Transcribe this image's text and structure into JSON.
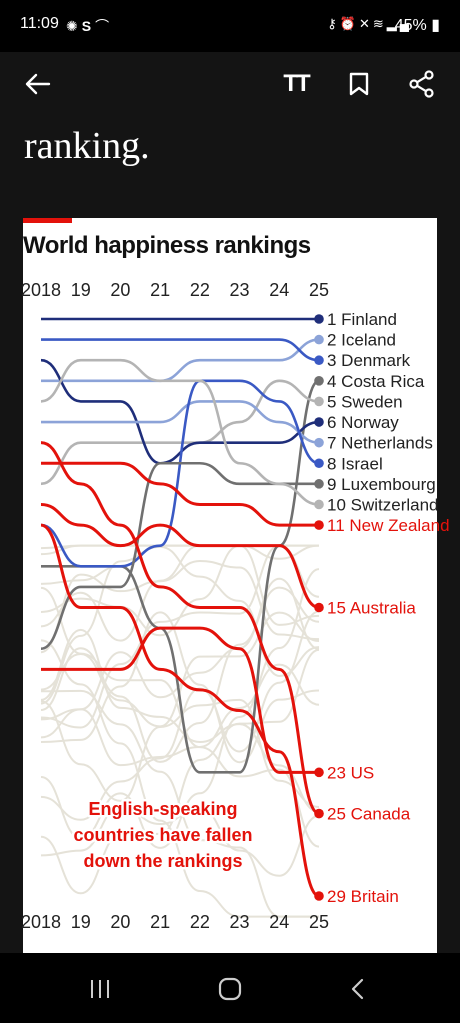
{
  "status_bar": {
    "time": "11:09",
    "left_icons": [
      "settings-icon",
      "s-app-icon",
      "wifi-calling-icon"
    ],
    "right_icons": [
      "key-icon",
      "alarm-icon",
      "mute-icon",
      "wifi-icon",
      "signal-icon"
    ],
    "battery": "45%"
  },
  "toolbar": {
    "back_icon": "arrow-left-icon",
    "text_size_label": "TT",
    "bookmark_icon": "bookmark-icon",
    "share_icon": "share-icon"
  },
  "article": {
    "headline_fragment": "ranking."
  },
  "chart_data": {
    "type": "line",
    "title": "World happiness rankings",
    "x_axis_top": [
      "2018",
      "19",
      "20",
      "21",
      "22",
      "23",
      "24",
      "25"
    ],
    "x_axis_bottom": [
      "2018",
      "19",
      "20",
      "21",
      "22",
      "23",
      "24",
      "25"
    ],
    "x": [
      2018,
      2019,
      2020,
      2021,
      2022,
      2023,
      2024,
      2025
    ],
    "y_axis": "rank (1 at top)",
    "y_range": [
      1,
      29
    ],
    "annotation": "English-speaking countries have fallen down the rankings",
    "colors": {
      "red": "#e3120b",
      "navy": "#1f2e7a",
      "blue": "#3a59c4",
      "lightblue": "#8ca3d8",
      "darkgray": "#707070",
      "lightgray": "#b4b4b4",
      "background_lines": "#e5e2d8"
    },
    "series": [
      {
        "name": "Finland",
        "label": "1 Finland",
        "color": "navy",
        "ranks": [
          1,
          1,
          1,
          1,
          1,
          1,
          1,
          1
        ]
      },
      {
        "name": "Iceland",
        "label": "2 Iceland",
        "color": "lightblue",
        "ranks": [
          4,
          4,
          4,
          4,
          3,
          3,
          3,
          2
        ]
      },
      {
        "name": "Denmark",
        "label": "3 Denmark",
        "color": "blue",
        "ranks": [
          2,
          2,
          2,
          2,
          2,
          2,
          2,
          3
        ]
      },
      {
        "name": "Costa Rica",
        "label": "4 Costa Rica",
        "color": "darkgray",
        "ranks": [
          13,
          13,
          13,
          16,
          23,
          23,
          12,
          4
        ]
      },
      {
        "name": "Sweden",
        "label": "5 Sweden",
        "color": "lightgray",
        "ranks": [
          9,
          7,
          7,
          7,
          7,
          6,
          4,
          5
        ]
      },
      {
        "name": "Norway",
        "label": "6 Norway",
        "color": "navy",
        "ranks": [
          3,
          5,
          5,
          8,
          7,
          7,
          7,
          6
        ]
      },
      {
        "name": "Netherlands",
        "label": "7 Netherlands",
        "color": "lightblue",
        "ranks": [
          6,
          6,
          6,
          6,
          5,
          5,
          6,
          7
        ]
      },
      {
        "name": "Israel",
        "label": "8 Israel",
        "color": "blue",
        "ranks": [
          11,
          13,
          13,
          12,
          4,
          4,
          5,
          8
        ]
      },
      {
        "name": "Luxembourg",
        "label": "9 Luxembourg",
        "color": "darkgray",
        "ranks": [
          17,
          14,
          14,
          8,
          8,
          9,
          9,
          9
        ]
      },
      {
        "name": "Switzerland",
        "label": "10 Switzerland",
        "color": "lightgray",
        "ranks": [
          5,
          3,
          3,
          4,
          4,
          8,
          9,
          10
        ]
      },
      {
        "name": "New Zealand",
        "label": "11 New Zealand",
        "color": "red",
        "ranks": [
          8,
          8,
          8,
          9,
          10,
          10,
          11,
          11
        ]
      },
      {
        "name": "Australia",
        "label": "15 Australia",
        "color": "red",
        "ranks": [
          10,
          11,
          12,
          11,
          12,
          12,
          12,
          15
        ]
      },
      {
        "name": "US",
        "label": "23 US",
        "color": "red",
        "ranks": [
          18,
          18,
          18,
          16,
          16,
          17,
          23,
          23
        ]
      },
      {
        "name": "Canada",
        "label": "25 Canada",
        "color": "red",
        "ranks": [
          7,
          9,
          11,
          14,
          15,
          15,
          18,
          25
        ]
      },
      {
        "name": "Britain",
        "label": "29 Britain",
        "color": "red",
        "ranks": [
          11,
          15,
          15,
          18,
          19,
          20,
          22,
          29
        ]
      }
    ]
  },
  "nav_bar": {
    "recent_icon": "recent-apps-icon",
    "home_icon": "home-icon",
    "back_icon": "nav-back-icon"
  }
}
